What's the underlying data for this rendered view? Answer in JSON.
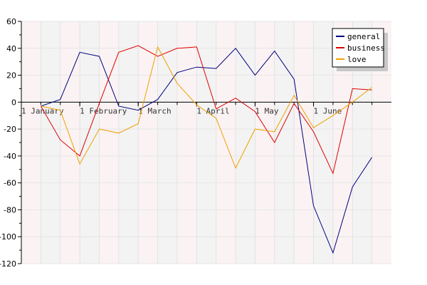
{
  "chart_data": {
    "type": "line",
    "ylim": [
      -120,
      60
    ],
    "y_ticks": [
      60,
      40,
      20,
      0,
      -20,
      -40,
      -60,
      -80,
      -100,
      -120
    ],
    "x_month_labels": [
      "1 January",
      "1 February",
      "1 March",
      "1 April",
      "1 May",
      "1 June"
    ],
    "legend_position": "top-right",
    "series": [
      {
        "name": "general",
        "color": "#000080",
        "values": [
          -3,
          2,
          37,
          34,
          -3,
          -6,
          2,
          22,
          26,
          25,
          40,
          20,
          38,
          17,
          -77,
          -112,
          -63,
          -41
        ]
      },
      {
        "name": "business",
        "color": "#dd0000",
        "values": [
          -3,
          -28,
          -40,
          -1,
          37,
          42,
          34,
          40,
          41,
          -5,
          3,
          -7,
          -30,
          -1,
          -22,
          -53,
          10,
          9
        ]
      },
      {
        "name": "love",
        "color": "#f0a000",
        "values": [
          -3,
          -6,
          -46,
          -20,
          -23,
          -16,
          41,
          14,
          -2,
          -12,
          -49,
          -20,
          -22,
          5,
          -19,
          -10,
          0,
          11
        ]
      }
    ]
  }
}
